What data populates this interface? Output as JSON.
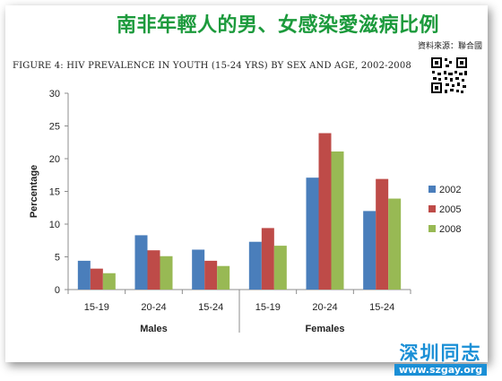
{
  "header": {
    "title_zh": "南非年輕人的男、女感染愛滋病比例",
    "source": "資料來源：聯合國",
    "figure_title": "FIGURE 4: HIV PREVALENCE IN YOUTH (15-24 YRS) BY SEX AND AGE, 2002-2008"
  },
  "watermark": {
    "name": "深圳同志",
    "url": "www.szgay.org"
  },
  "chart_data": {
    "type": "bar",
    "groups": [
      "Males",
      "Females"
    ],
    "categories": [
      "15-19",
      "20-24",
      "15-24",
      "15-19",
      "20-24",
      "15-24"
    ],
    "series": [
      {
        "name": "2002",
        "color": "#4a7ebb",
        "values": [
          4.4,
          8.3,
          6.1,
          7.3,
          17.1,
          12.0
        ]
      },
      {
        "name": "2005",
        "color": "#be4b48",
        "values": [
          3.2,
          6.0,
          4.4,
          9.4,
          23.9,
          16.9
        ]
      },
      {
        "name": "2008",
        "color": "#98b954",
        "values": [
          2.5,
          5.1,
          3.6,
          6.7,
          21.1,
          13.9
        ]
      }
    ],
    "ylabel": "Percentage",
    "ylim": [
      0,
      30
    ],
    "yticks": [
      0,
      5,
      10,
      15,
      20,
      25,
      30
    ],
    "grid": false,
    "legend": "right"
  }
}
